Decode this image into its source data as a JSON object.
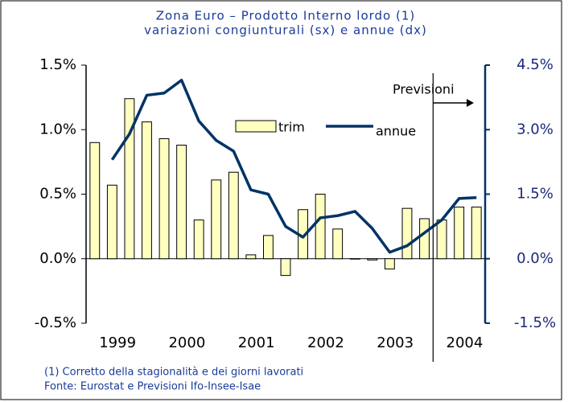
{
  "chart_data": {
    "type": "bar_line",
    "title": "Zona Euro – Prodotto Interno lordo (1)",
    "subtitle": "variazioni congiunturali (sx) e annue (dx)",
    "categories": [
      "1999",
      null,
      null,
      null,
      "2000",
      null,
      null,
      null,
      "2001",
      null,
      null,
      null,
      "2002",
      null,
      null,
      null,
      "2003",
      null,
      null,
      null,
      "2004",
      null,
      null
    ],
    "series": [
      {
        "name": "trim",
        "color": "#ffffc0",
        "values": [
          0.9,
          0.57,
          1.24,
          1.06,
          0.93,
          0.88,
          0.3,
          0.61,
          0.67,
          0.03,
          0.18,
          -0.13,
          0.38,
          0.5,
          0.23,
          0.0,
          -0.01,
          -0.08,
          0.39,
          0.31,
          0.3,
          0.4,
          0.4
        ]
      },
      {
        "name": "annue",
        "color": "#003366",
        "axis": "y2",
        "values": [
          null,
          2.3,
          2.9,
          3.8,
          3.85,
          4.15,
          3.2,
          2.75,
          2.5,
          1.6,
          1.5,
          0.75,
          0.5,
          0.95,
          1.0,
          1.1,
          0.7,
          0.15,
          0.3,
          0.6,
          0.9,
          1.4,
          1.42
        ]
      }
    ],
    "ylim": [
      -0.5,
      1.5
    ],
    "yticks": [
      {
        "value": -0.5,
        "label": "-0.5%"
      },
      {
        "value": 0,
        "label": "0.0%"
      },
      {
        "value": 0.5,
        "label": "0.5%"
      },
      {
        "value": 1.0,
        "label": "1.0%"
      },
      {
        "value": 1.5,
        "label": "1.5%"
      }
    ],
    "y2lim": [
      -1.5,
      4.5
    ],
    "y2ticks": [
      {
        "value": -1.5,
        "label": "-1.5%"
      },
      {
        "value": 0,
        "label": "0.0%"
      },
      {
        "value": 1.5,
        "label": "1.5%"
      },
      {
        "value": 3.0,
        "label": "3.0%"
      },
      {
        "value": 4.5,
        "label": "4.5%"
      }
    ],
    "annotation": "Previsioni",
    "footnotes": [
      "(1) Corretto della stagionalità e dei giorni lavorati",
      "Fonte: Eurostat e Previsioni Ifo-Insee-Isae"
    ]
  }
}
